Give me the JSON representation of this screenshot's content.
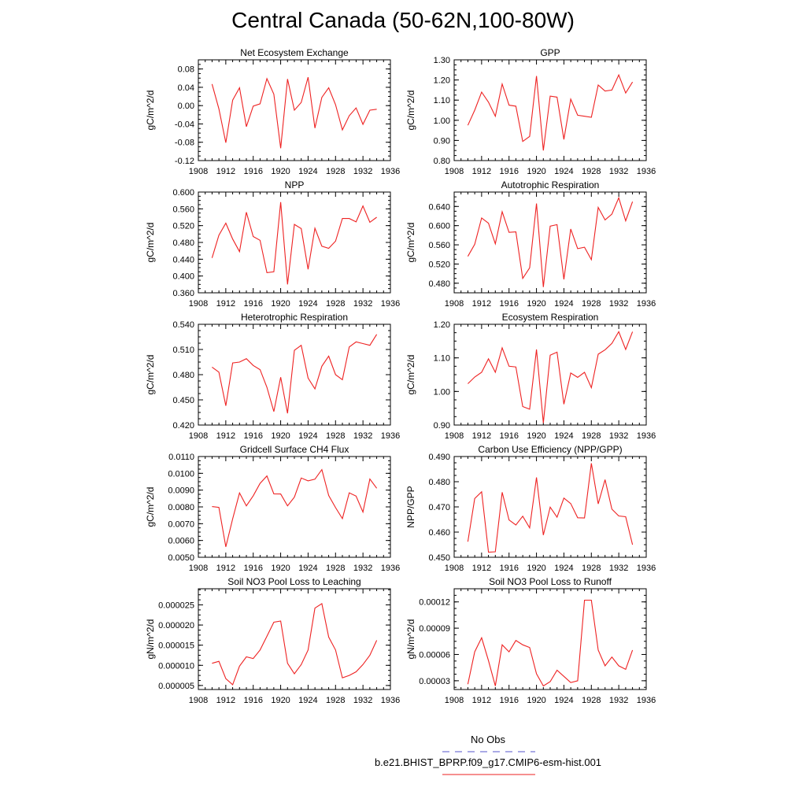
{
  "title": "Central Canada (50-62N,100-80W)",
  "legend": {
    "entries": [
      {
        "label": "No Obs",
        "color": "#5555cc",
        "style": "dashed"
      },
      {
        "label": "b.e21.BHIST_BPRP.f09_g17.CMIP6-esm-hist.001",
        "color": "#ee2222",
        "style": "solid"
      }
    ]
  },
  "chart_data": [
    {
      "type": "line",
      "title": "Net Ecosystem Exchange",
      "ylabel": "gC/m^2/d",
      "xlim": [
        1908,
        1936
      ],
      "ylim": [
        -0.12,
        0.1
      ],
      "xticks": [
        "1908",
        "1912",
        "1916",
        "1920",
        "1924",
        "1928",
        "1932",
        "1936"
      ],
      "yticks": [
        "0.08",
        "0.04",
        "0.00",
        "-0.04",
        "-0.08",
        "-0.12"
      ],
      "ytick_values": [
        0.08,
        0.04,
        0.0,
        -0.04,
        -0.08,
        -0.12
      ],
      "series": [
        {
          "color": "#ee2222",
          "x": [
            1910,
            1911,
            1912,
            1913,
            1914,
            1915,
            1916,
            1917,
            1918,
            1919,
            1920,
            1921,
            1922,
            1923,
            1924,
            1925,
            1926,
            1927,
            1928,
            1929,
            1930,
            1931,
            1932,
            1933,
            1934
          ],
          "values": [
            0.047,
            -0.007,
            -0.081,
            0.012,
            0.039,
            -0.046,
            -0.001,
            0.004,
            0.059,
            0.025,
            -0.093,
            0.058,
            -0.01,
            0.007,
            0.062,
            -0.049,
            0.018,
            0.039,
            0.002,
            -0.053,
            -0.022,
            -0.005,
            -0.041,
            -0.01,
            -0.008
          ]
        }
      ]
    },
    {
      "type": "line",
      "title": "GPP",
      "ylabel": "gC/m^2/d",
      "xlim": [
        1908,
        1936
      ],
      "ylim": [
        0.8,
        1.3
      ],
      "xticks": [
        "1908",
        "1912",
        "1916",
        "1920",
        "1924",
        "1928",
        "1932",
        "1936"
      ],
      "yticks": [
        "1.30",
        "1.20",
        "1.10",
        "1.00",
        "0.90",
        "0.80"
      ],
      "ytick_values": [
        1.3,
        1.2,
        1.1,
        1.0,
        0.9,
        0.8
      ],
      "series": [
        {
          "color": "#ee2222",
          "x": [
            1910,
            1911,
            1912,
            1913,
            1914,
            1915,
            1916,
            1917,
            1918,
            1919,
            1920,
            1921,
            1922,
            1923,
            1924,
            1925,
            1926,
            1927,
            1928,
            1929,
            1930,
            1931,
            1932,
            1933,
            1934
          ],
          "values": [
            0.975,
            1.05,
            1.14,
            1.09,
            1.02,
            1.18,
            1.075,
            1.07,
            0.895,
            0.92,
            1.22,
            0.85,
            1.12,
            1.115,
            0.905,
            1.105,
            1.025,
            1.02,
            1.015,
            1.175,
            1.145,
            1.15,
            1.225,
            1.135,
            1.19
          ]
        }
      ]
    },
    {
      "type": "line",
      "title": "NPP",
      "ylabel": "gC/m^2/d",
      "xlim": [
        1908,
        1936
      ],
      "ylim": [
        0.36,
        0.6
      ],
      "xticks": [
        "1908",
        "1912",
        "1916",
        "1920",
        "1924",
        "1928",
        "1932",
        "1936"
      ],
      "yticks": [
        "0.600",
        "0.560",
        "0.520",
        "0.480",
        "0.440",
        "0.400",
        "0.360"
      ],
      "ytick_values": [
        0.6,
        0.56,
        0.52,
        0.48,
        0.44,
        0.4,
        0.36
      ],
      "series": [
        {
          "color": "#ee2222",
          "x": [
            1910,
            1911,
            1912,
            1913,
            1914,
            1915,
            1916,
            1917,
            1918,
            1919,
            1920,
            1921,
            1922,
            1923,
            1924,
            1925,
            1926,
            1927,
            1928,
            1929,
            1930,
            1931,
            1932,
            1933,
            1934
          ],
          "values": [
            0.443,
            0.497,
            0.526,
            0.488,
            0.458,
            0.552,
            0.494,
            0.485,
            0.408,
            0.41,
            0.576,
            0.38,
            0.523,
            0.513,
            0.416,
            0.514,
            0.471,
            0.466,
            0.483,
            0.537,
            0.537,
            0.529,
            0.567,
            0.528,
            0.54
          ]
        }
      ]
    },
    {
      "type": "line",
      "title": "Autotrophic Respiration",
      "ylabel": "gC/m^2/d",
      "xlim": [
        1908,
        1936
      ],
      "ylim": [
        0.46,
        0.67
      ],
      "xticks": [
        "1908",
        "1912",
        "1916",
        "1920",
        "1924",
        "1928",
        "1932",
        "1936"
      ],
      "yticks": [
        "0.640",
        "0.600",
        "0.560",
        "0.520",
        "0.480"
      ],
      "ytick_values": [
        0.64,
        0.6,
        0.56,
        0.52,
        0.48
      ],
      "series": [
        {
          "color": "#ee2222",
          "x": [
            1910,
            1911,
            1912,
            1913,
            1914,
            1915,
            1916,
            1917,
            1918,
            1919,
            1920,
            1921,
            1922,
            1923,
            1924,
            1925,
            1926,
            1927,
            1928,
            1929,
            1930,
            1931,
            1932,
            1933,
            1934
          ],
          "values": [
            0.536,
            0.561,
            0.616,
            0.605,
            0.562,
            0.629,
            0.586,
            0.587,
            0.49,
            0.512,
            0.646,
            0.472,
            0.599,
            0.602,
            0.488,
            0.593,
            0.552,
            0.555,
            0.529,
            0.638,
            0.612,
            0.624,
            0.658,
            0.61,
            0.65
          ]
        }
      ]
    },
    {
      "type": "line",
      "title": "Heterotrophic Respiration",
      "ylabel": "gC/m^2/d",
      "xlim": [
        1908,
        1936
      ],
      "ylim": [
        0.42,
        0.54
      ],
      "xticks": [
        "1908",
        "1912",
        "1916",
        "1920",
        "1924",
        "1928",
        "1932",
        "1936"
      ],
      "yticks": [
        "0.540",
        "0.510",
        "0.480",
        "0.450",
        "0.420"
      ],
      "ytick_values": [
        0.54,
        0.51,
        0.48,
        0.45,
        0.42
      ],
      "series": [
        {
          "color": "#ee2222",
          "x": [
            1910,
            1911,
            1912,
            1913,
            1914,
            1915,
            1916,
            1917,
            1918,
            1919,
            1920,
            1921,
            1922,
            1923,
            1924,
            1925,
            1926,
            1927,
            1928,
            1929,
            1930,
            1931,
            1932,
            1933,
            1934
          ],
          "values": [
            0.489,
            0.483,
            0.443,
            0.494,
            0.495,
            0.499,
            0.491,
            0.486,
            0.465,
            0.436,
            0.477,
            0.434,
            0.509,
            0.515,
            0.476,
            0.463,
            0.49,
            0.502,
            0.48,
            0.474,
            0.513,
            0.519,
            0.517,
            0.515,
            0.528
          ]
        }
      ]
    },
    {
      "type": "line",
      "title": "Ecosystem Respiration",
      "ylabel": "gC/m^2/d",
      "xlim": [
        1908,
        1936
      ],
      "ylim": [
        0.9,
        1.2
      ],
      "xticks": [
        "1908",
        "1912",
        "1916",
        "1920",
        "1924",
        "1928",
        "1932",
        "1936"
      ],
      "yticks": [
        "1.20",
        "1.10",
        "1.00",
        "0.90"
      ],
      "ytick_values": [
        1.2,
        1.1,
        1.0,
        0.9
      ],
      "series": [
        {
          "color": "#ee2222",
          "x": [
            1910,
            1911,
            1912,
            1913,
            1914,
            1915,
            1916,
            1917,
            1918,
            1919,
            1920,
            1921,
            1922,
            1923,
            1924,
            1925,
            1926,
            1927,
            1928,
            1929,
            1930,
            1931,
            1932,
            1933,
            1934
          ],
          "values": [
            1.023,
            1.043,
            1.057,
            1.097,
            1.057,
            1.13,
            1.075,
            1.073,
            0.955,
            0.947,
            1.125,
            0.906,
            1.108,
            1.117,
            0.962,
            1.055,
            1.042,
            1.057,
            1.011,
            1.111,
            1.124,
            1.143,
            1.178,
            1.125,
            1.178
          ]
        }
      ]
    },
    {
      "type": "line",
      "title": "Gridcell Surface CH4 Flux",
      "ylabel": "gC/m^2/d",
      "xlim": [
        1908,
        1936
      ],
      "ylim": [
        0.005,
        0.011
      ],
      "xticks": [
        "1908",
        "1912",
        "1916",
        "1920",
        "1924",
        "1928",
        "1932",
        "1936"
      ],
      "yticks": [
        "0.0110",
        "0.0100",
        "0.0090",
        "0.0080",
        "0.0070",
        "0.0060",
        "0.0050"
      ],
      "ytick_values": [
        0.011,
        0.01,
        0.009,
        0.008,
        0.007,
        0.006,
        0.005
      ],
      "series": [
        {
          "color": "#ee2222",
          "x": [
            1910,
            1911,
            1912,
            1913,
            1914,
            1915,
            1916,
            1917,
            1918,
            1919,
            1920,
            1921,
            1922,
            1923,
            1924,
            1925,
            1926,
            1927,
            1928,
            1929,
            1930,
            1931,
            1932,
            1933,
            1934
          ],
          "values": [
            0.00802,
            0.00797,
            0.00562,
            0.00729,
            0.00883,
            0.00806,
            0.00866,
            0.0094,
            0.00984,
            0.00878,
            0.00877,
            0.00806,
            0.00858,
            0.00972,
            0.00955,
            0.00965,
            0.01022,
            0.00868,
            0.00796,
            0.0073,
            0.00884,
            0.00864,
            0.00769,
            0.00966,
            0.00911
          ]
        }
      ]
    },
    {
      "type": "line",
      "title": "Carbon Use Efficiency (NPP/GPP)",
      "ylabel": "NPP/GPP",
      "xlim": [
        1908,
        1936
      ],
      "ylim": [
        0.45,
        0.49
      ],
      "xticks": [
        "1908",
        "1912",
        "1916",
        "1920",
        "1924",
        "1928",
        "1932",
        "1936"
      ],
      "yticks": [
        "0.490",
        "0.480",
        "0.470",
        "0.460",
        "0.450"
      ],
      "ytick_values": [
        0.49,
        0.48,
        0.47,
        0.46,
        0.45
      ],
      "series": [
        {
          "color": "#ee2222",
          "x": [
            1910,
            1911,
            1912,
            1913,
            1914,
            1915,
            1916,
            1917,
            1918,
            1919,
            1920,
            1921,
            1922,
            1923,
            1924,
            1925,
            1926,
            1927,
            1928,
            1929,
            1930,
            1931,
            1932,
            1933,
            1934
          ],
          "values": [
            0.4562,
            0.4733,
            0.476,
            0.452,
            0.4522,
            0.4758,
            0.4648,
            0.4628,
            0.4663,
            0.4617,
            0.4817,
            0.4588,
            0.4699,
            0.4659,
            0.4735,
            0.4713,
            0.4657,
            0.4656,
            0.4873,
            0.4712,
            0.4808,
            0.4691,
            0.4664,
            0.4661,
            0.455
          ]
        }
      ]
    },
    {
      "type": "line",
      "title": "Soil NO3 Pool Loss to Leaching",
      "ylabel": "gN/m^2/d",
      "xlim": [
        1908,
        1936
      ],
      "ylim": [
        4e-06,
        2.9e-05
      ],
      "xticks": [
        "1908",
        "1912",
        "1916",
        "1920",
        "1924",
        "1928",
        "1932",
        "1936"
      ],
      "yticks": [
        "0.000025",
        "0.000020",
        "0.000015",
        "0.000010",
        "0.000005"
      ],
      "ytick_values": [
        2.5e-05,
        2e-05,
        1.5e-05,
        1e-05,
        5e-06
      ],
      "series": [
        {
          "color": "#ee2222",
          "x": [
            1910,
            1911,
            1912,
            1913,
            1914,
            1915,
            1916,
            1917,
            1918,
            1919,
            1920,
            1921,
            1922,
            1923,
            1924,
            1925,
            1926,
            1927,
            1928,
            1929,
            1930,
            1931,
            1932,
            1933,
            1934
          ],
          "values": [
            1.05e-05,
            1.1e-05,
            6.7e-06,
            5.2e-06,
            9.8e-06,
            1.21e-05,
            1.17e-05,
            1.38e-05,
            1.72e-05,
            2.07e-05,
            2.1e-05,
            1.05e-05,
            7.9e-06,
            1.02e-05,
            1.38e-05,
            2.42e-05,
            2.53e-05,
            1.7e-05,
            1.38e-05,
            6.9e-06,
            7.5e-06,
            8.4e-06,
            1.02e-05,
            1.25e-05,
            1.62e-05
          ]
        }
      ]
    },
    {
      "type": "line",
      "title": "Soil NO3 Pool Loss to Runoff",
      "ylabel": "gN/m^2/d",
      "xlim": [
        1908,
        1936
      ],
      "ylim": [
        2e-05,
        0.000135
      ],
      "xticks": [
        "1908",
        "1912",
        "1916",
        "1920",
        "1924",
        "1928",
        "1932",
        "1936"
      ],
      "yticks": [
        "0.00012",
        "0.00009",
        "0.00006",
        "0.00003"
      ],
      "ytick_values": [
        0.00012,
        9e-05,
        6e-05,
        3e-05
      ],
      "series": [
        {
          "color": "#ee2222",
          "x": [
            1910,
            1911,
            1912,
            1913,
            1914,
            1915,
            1916,
            1917,
            1918,
            1919,
            1920,
            1921,
            1922,
            1923,
            1924,
            1925,
            1926,
            1927,
            1928,
            1929,
            1930,
            1931,
            1932,
            1933,
            1934
          ],
          "values": [
            2.6e-05,
            6.3e-05,
            7.9e-05,
            5.3e-05,
            2.4e-05,
            7.1e-05,
            6.3e-05,
            7.6e-05,
            7.1e-05,
            6.8e-05,
            3.8e-05,
            2.4e-05,
            2.9e-05,
            4.2e-05,
            3.5e-05,
            2.8e-05,
            3e-05,
            0.000122,
            0.000122,
            6.5e-05,
            4.7e-05,
            5.7e-05,
            4.7e-05,
            4.3e-05,
            6.5e-05
          ]
        }
      ]
    }
  ]
}
